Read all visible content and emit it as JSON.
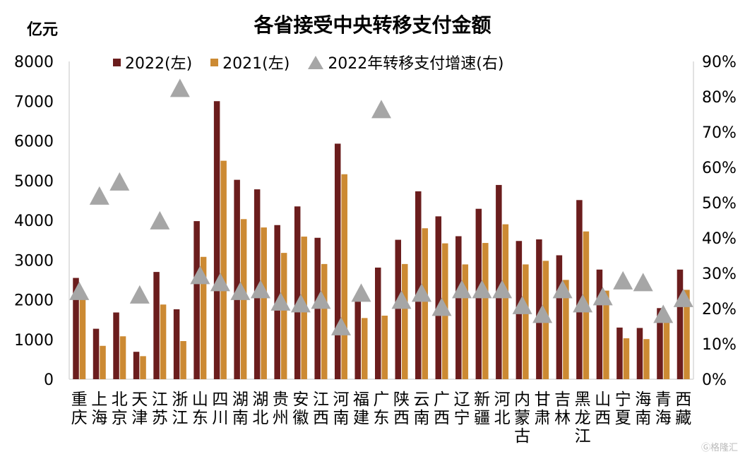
{
  "chart_data": {
    "type": "bar",
    "title": "各省接受中央转移支付金额",
    "ylabel": "亿元",
    "ylim": [
      0,
      8000
    ],
    "yticks": [
      "0",
      "1000",
      "2000",
      "3000",
      "4000",
      "5000",
      "6000",
      "7000",
      "8000"
    ],
    "y2lim": [
      0,
      90
    ],
    "y2ticks": [
      "0%",
      "10%",
      "20%",
      "30%",
      "40%",
      "50%",
      "60%",
      "70%",
      "80%",
      "90%"
    ],
    "categories": [
      "重庆",
      "上海",
      "北京",
      "天津",
      "江苏",
      "浙江",
      "山东",
      "四川",
      "湖南",
      "湖北",
      "贵州",
      "安徽",
      "江西",
      "河南",
      "福建",
      "广东",
      "陕西",
      "云南",
      "广西",
      "辽宁",
      "新疆",
      "河北",
      "内蒙古",
      "甘肃",
      "吉林",
      "黑龙江",
      "山西",
      "宁夏",
      "海南",
      "青海",
      "西藏"
    ],
    "series": [
      {
        "name": "2022(左)",
        "color": "#6b1d1d",
        "axis": "left",
        "values": [
          2550,
          1270,
          1680,
          690,
          2700,
          1760,
          3980,
          7000,
          5020,
          4780,
          3880,
          4350,
          3560,
          5930,
          1970,
          2810,
          3510,
          4730,
          4100,
          3600,
          4290,
          4890,
          3480,
          3520,
          3120,
          4510,
          2760,
          1300,
          1290,
          1790,
          2760
        ]
      },
      {
        "name": "2021(左)",
        "color": "#cc8a33",
        "axis": "left",
        "values": [
          2060,
          840,
          1080,
          580,
          1880,
          960,
          3080,
          5500,
          4030,
          3820,
          3180,
          3590,
          2900,
          5160,
          1540,
          1600,
          2900,
          3800,
          3420,
          2890,
          3430,
          3900,
          2890,
          2980,
          2500,
          3720,
          2230,
          1030,
          1010,
          1530,
          2250
        ]
      },
      {
        "name": "2022年转移支付增速(右)",
        "color": "#a6a6a6",
        "axis": "right",
        "type": "scatter",
        "marker": "triangle",
        "values": [
          24.5,
          51.5,
          55.5,
          23.5,
          44.5,
          82,
          29,
          27,
          24.5,
          25,
          21.5,
          21,
          22,
          14.5,
          24,
          76,
          22,
          24,
          20,
          25,
          25,
          25,
          20.5,
          18,
          25,
          21,
          23,
          27.5,
          27,
          18,
          22.5
        ]
      }
    ],
    "legend": "top",
    "grid": false
  },
  "watermark": "Ⓖ格隆汇"
}
